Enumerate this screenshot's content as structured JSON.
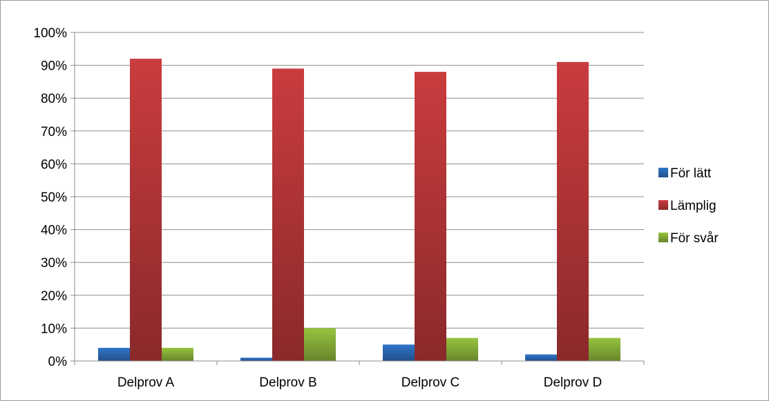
{
  "chart_data": {
    "type": "bar",
    "title": "",
    "xlabel": "",
    "ylabel": "",
    "categories": [
      "Delprov A",
      "Delprov B",
      "Delprov C",
      "Delprov D"
    ],
    "series": [
      {
        "name": "För lätt",
        "values": [
          4,
          1,
          5,
          2
        ],
        "color": "#2f6fc0"
      },
      {
        "name": "Lämplig",
        "values": [
          92,
          89,
          88,
          91
        ],
        "color": "#c0393b"
      },
      {
        "name": "För svår",
        "values": [
          4,
          10,
          7,
          7
        ],
        "color": "#8fba3c"
      }
    ],
    "ylim": [
      0,
      100
    ],
    "y_ticks": [
      0,
      10,
      20,
      30,
      40,
      50,
      60,
      70,
      80,
      90,
      100
    ],
    "y_tick_labels": [
      "0%",
      "10%",
      "20%",
      "30%",
      "40%",
      "50%",
      "60%",
      "70%",
      "80%",
      "90%",
      "100%"
    ],
    "grid": true,
    "legend_position": "right"
  }
}
